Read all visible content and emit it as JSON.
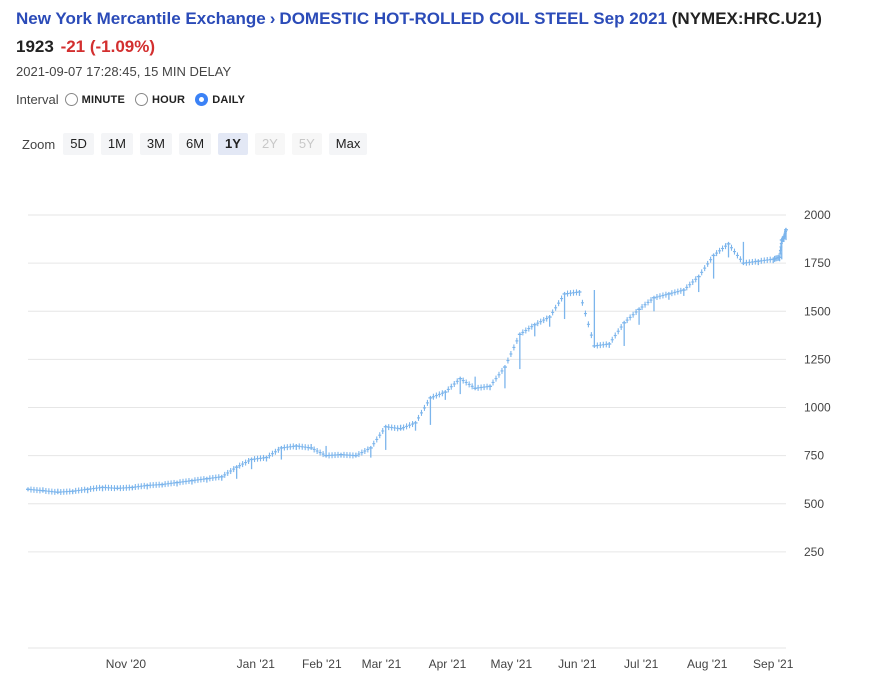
{
  "header": {
    "exchange": "New York Mercantile Exchange",
    "separator": "›",
    "contract": "DOMESTIC HOT-ROLLED COIL STEEL Sep 2021",
    "symbol": "(NYMEX:HRC.U21)",
    "price": "1923",
    "change": "-21 (-1.09%)",
    "timestamp": "2021-09-07 17:28:45, 15 MIN DELAY"
  },
  "interval": {
    "label": "Interval",
    "options": [
      {
        "label": "MINUTE",
        "checked": false
      },
      {
        "label": "HOUR",
        "checked": false
      },
      {
        "label": "DAILY",
        "checked": true
      }
    ]
  },
  "zoom": {
    "label": "Zoom",
    "buttons": [
      {
        "label": "5D",
        "state": "normal"
      },
      {
        "label": "1M",
        "state": "normal"
      },
      {
        "label": "3M",
        "state": "normal"
      },
      {
        "label": "6M",
        "state": "normal"
      },
      {
        "label": "1Y",
        "state": "active"
      },
      {
        "label": "2Y",
        "state": "disabled"
      },
      {
        "label": "5Y",
        "state": "disabled"
      },
      {
        "label": "Max",
        "state": "normal"
      }
    ]
  },
  "colors": {
    "series": "#7cb5ec",
    "grid": "#e6e6e6",
    "link": "#2b4bb8",
    "negative": "#d32f2f"
  },
  "chart_data": {
    "type": "line",
    "style": "ohlc",
    "x_axis": "date",
    "yticks": [
      250,
      500,
      750,
      1000,
      1250,
      1500,
      1750,
      2000
    ],
    "ylim": [
      0,
      2000
    ],
    "grid": true,
    "x_tick_labels": [
      "Nov '20",
      "Jan '21",
      "Feb '21",
      "Mar '21",
      "Apr '21",
      "May '21",
      "Jun '21",
      "Jul '21",
      "Aug '21",
      "Sep '21"
    ],
    "x_tick_dates": [
      "2020-11-01",
      "2021-01-01",
      "2021-02-01",
      "2021-03-01",
      "2021-04-01",
      "2021-05-01",
      "2021-06-01",
      "2021-07-01",
      "2021-08-01",
      "2021-09-01"
    ],
    "x_range": [
      "2020-09-16",
      "2021-09-07"
    ],
    "series": [
      {
        "points": [
          [
            "2020-09-16",
            575
          ],
          [
            "2020-09-23",
            568
          ],
          [
            "2020-09-30",
            560
          ],
          [
            "2020-10-07",
            565
          ],
          [
            "2020-10-14",
            575
          ],
          [
            "2020-10-21",
            585
          ],
          [
            "2020-10-28",
            580
          ],
          [
            "2020-11-04",
            585
          ],
          [
            "2020-11-11",
            595
          ],
          [
            "2020-11-18",
            600
          ],
          [
            "2020-11-25",
            610
          ],
          [
            "2020-12-02",
            620
          ],
          [
            "2020-12-09",
            630
          ],
          [
            "2020-12-16",
            640
          ],
          [
            "2020-12-23",
            690
          ],
          [
            "2020-12-30",
            730
          ],
          [
            "2021-01-06",
            740
          ],
          [
            "2021-01-13",
            790
          ],
          [
            "2021-01-20",
            800
          ],
          [
            "2021-01-27",
            790
          ],
          [
            "2021-02-03",
            750
          ],
          [
            "2021-02-10",
            755
          ],
          [
            "2021-02-17",
            750
          ],
          [
            "2021-02-24",
            790
          ],
          [
            "2021-03-03",
            900
          ],
          [
            "2021-03-10",
            890
          ],
          [
            "2021-03-17",
            920
          ],
          [
            "2021-03-24",
            1050
          ],
          [
            "2021-03-31",
            1080
          ],
          [
            "2021-04-07",
            1150
          ],
          [
            "2021-04-14",
            1100
          ],
          [
            "2021-04-21",
            1110
          ],
          [
            "2021-04-28",
            1210
          ],
          [
            "2021-05-05",
            1380
          ],
          [
            "2021-05-12",
            1430
          ],
          [
            "2021-05-19",
            1470
          ],
          [
            "2021-05-26",
            1590
          ],
          [
            "2021-06-02",
            1600
          ],
          [
            "2021-06-09",
            1320
          ],
          [
            "2021-06-16",
            1330
          ],
          [
            "2021-06-23",
            1440
          ],
          [
            "2021-06-30",
            1510
          ],
          [
            "2021-07-07",
            1570
          ],
          [
            "2021-07-14",
            1590
          ],
          [
            "2021-07-21",
            1610
          ],
          [
            "2021-07-28",
            1680
          ],
          [
            "2021-08-04",
            1790
          ],
          [
            "2021-08-11",
            1850
          ],
          [
            "2021-08-18",
            1750
          ],
          [
            "2021-08-25",
            1760
          ],
          [
            "2021-09-01",
            1770
          ],
          [
            "2021-09-04",
            1780
          ],
          [
            "2021-09-05",
            1870
          ],
          [
            "2021-09-06",
            1880
          ],
          [
            "2021-09-07",
            1923
          ]
        ]
      }
    ]
  }
}
